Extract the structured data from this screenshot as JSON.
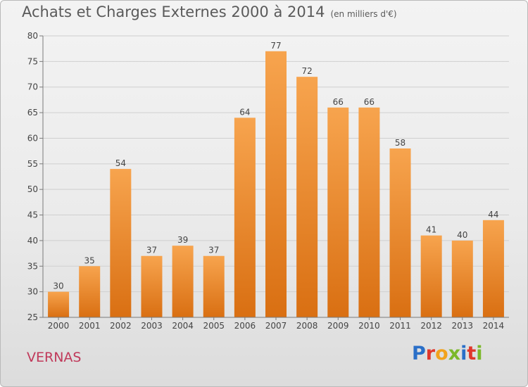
{
  "header": {
    "title": "Achats et Charges Externes 2000 à 2014",
    "unit": "(en milliers d'€)"
  },
  "footer": {
    "city": "VERNAS",
    "logo_text": "Proxiti",
    "logo_colors": [
      "#2a6fc8",
      "#e0372b",
      "#f2a21c",
      "#7bb82a",
      "#2a6fc8",
      "#e0372b",
      "#7bb82a"
    ]
  },
  "colors": {
    "bar_top": "#f7a44e",
    "bar_bottom": "#d96f12",
    "axis": "#7a7a7a",
    "grid": "#cfcfcf",
    "label": "#444444"
  },
  "chart_data": {
    "type": "bar",
    "title": "Achats et Charges Externes 2000 à 2014",
    "subtitle": "(en milliers d'€)",
    "xlabel": "",
    "ylabel": "",
    "categories": [
      "2000",
      "2001",
      "2002",
      "2003",
      "2004",
      "2005",
      "2006",
      "2007",
      "2008",
      "2009",
      "2010",
      "2011",
      "2012",
      "2013",
      "2014"
    ],
    "values": [
      30,
      35,
      54,
      37,
      39,
      37,
      64,
      77,
      72,
      66,
      66,
      58,
      41,
      40,
      44
    ],
    "ylim": [
      25,
      80
    ],
    "yticks": [
      25,
      30,
      35,
      40,
      45,
      50,
      55,
      60,
      65,
      70,
      75,
      80
    ],
    "grid": true,
    "legend": "none"
  }
}
